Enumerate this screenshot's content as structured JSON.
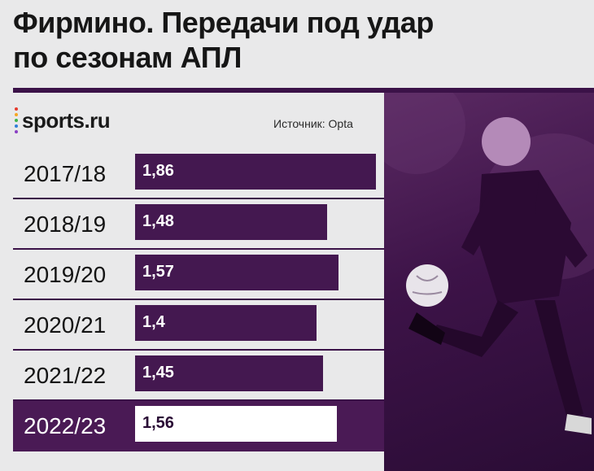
{
  "header": {
    "title_line1": "Фирмино. Передачи под удар",
    "title_line2": "по сезонам АПЛ"
  },
  "brand": {
    "logo_text": "sports.ru",
    "dot_colors": [
      "#e63b2e",
      "#f5a623",
      "#3fb549",
      "#2f7fd8",
      "#8a3fc4"
    ]
  },
  "source": "Источник: Opta",
  "colors": {
    "accent": "#441850",
    "highlight_row": "#4a1a55",
    "background": "#e9e9ea"
  },
  "chart_data": {
    "type": "bar",
    "orientation": "horizontal",
    "title": "Фирмино. Передачи под удар по сезонам АПЛ",
    "categories": [
      "2017/18",
      "2018/19",
      "2019/20",
      "2020/21",
      "2021/22",
      "2022/23"
    ],
    "values": [
      1.86,
      1.48,
      1.57,
      1.4,
      1.45,
      1.56
    ],
    "value_labels": [
      "1,86",
      "1,48",
      "1,57",
      "1,4",
      "1,45",
      "1,56"
    ],
    "highlighted_category": "2022/23",
    "xlim": [
      0,
      1.86
    ],
    "grid": false,
    "legend": "none"
  }
}
